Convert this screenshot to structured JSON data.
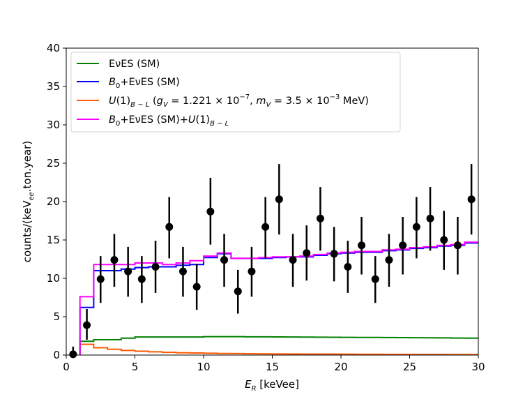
{
  "chart_data": {
    "type": "step-histogram-with-errorbars",
    "title": "",
    "xlabel": "E_R [keVee]",
    "ylabel": "counts/(keV_ee.ton.year)",
    "xlim": [
      0,
      30
    ],
    "ylim": [
      0,
      40
    ],
    "xticks": [
      "0",
      "5",
      "10",
      "15",
      "20",
      "25",
      "30"
    ],
    "yticks": [
      "0",
      "5",
      "10",
      "15",
      "20",
      "25",
      "30",
      "35",
      "40"
    ],
    "legend_position": "upper-left",
    "legend": [
      {
        "label": "EνES (SM)",
        "color": "#008000"
      },
      {
        "label": "B0+EνES (SM)",
        "color": "#0000ff"
      },
      {
        "label": "U(1)B−L (gV = 1.221 × 10^−7, mV = 3.5 × 10^−3 MeV)",
        "color": "#ff5a00"
      },
      {
        "label": "B0+EνES (SM)+U(1)B−L",
        "color": "#ff00ff"
      }
    ],
    "bin_edges": [
      1,
      2,
      3,
      4,
      5,
      6,
      7,
      8,
      9,
      10,
      11,
      12,
      13,
      14,
      15,
      16,
      17,
      18,
      19,
      20,
      21,
      22,
      23,
      24,
      25,
      26,
      27,
      28,
      29,
      30
    ],
    "series": [
      {
        "name": "EνES (SM)",
        "values": [
          1.8,
          2.0,
          2.0,
          2.2,
          2.35,
          2.35,
          2.35,
          2.35,
          2.35,
          2.4,
          2.4,
          2.4,
          2.38,
          2.37,
          2.36,
          2.35,
          2.34,
          2.33,
          2.32,
          2.31,
          2.3,
          2.29,
          2.28,
          2.27,
          2.26,
          2.25,
          2.24,
          2.22,
          2.2
        ]
      },
      {
        "name": "B0+EνES (SM)",
        "values": [
          6.2,
          11.0,
          11.0,
          11.2,
          11.4,
          11.5,
          11.5,
          11.7,
          11.8,
          12.7,
          13.2,
          12.6,
          12.6,
          12.6,
          12.7,
          12.8,
          12.8,
          13.0,
          13.2,
          13.3,
          13.4,
          13.4,
          13.6,
          13.7,
          13.9,
          14.0,
          14.2,
          14.3,
          14.6
        ]
      },
      {
        "name": "U(1)B−L",
        "values": [
          1.4,
          0.95,
          0.75,
          0.6,
          0.5,
          0.42,
          0.35,
          0.3,
          0.27,
          0.24,
          0.21,
          0.19,
          0.17,
          0.16,
          0.15,
          0.14,
          0.13,
          0.12,
          0.12,
          0.11,
          0.1,
          0.1,
          0.09,
          0.09,
          0.08,
          0.08,
          0.08,
          0.07,
          0.07
        ]
      },
      {
        "name": "B0+EνES (SM)+U(1)B−L",
        "values": [
          7.6,
          11.8,
          11.8,
          11.8,
          12.0,
          12.0,
          11.8,
          12.0,
          12.3,
          12.9,
          13.3,
          12.6,
          12.6,
          12.7,
          12.8,
          12.8,
          12.9,
          13.1,
          13.3,
          13.4,
          13.5,
          13.5,
          13.7,
          13.8,
          14.0,
          14.1,
          14.3,
          14.4,
          14.7
        ]
      }
    ],
    "data_points": {
      "x": [
        0.5,
        1.5,
        2.5,
        3.5,
        4.5,
        5.5,
        6.5,
        7.5,
        8.5,
        9.5,
        10.5,
        11.5,
        12.5,
        13.5,
        14.5,
        15.5,
        16.5,
        17.5,
        18.5,
        19.5,
        20.5,
        21.5,
        22.5,
        23.5,
        24.5,
        25.5,
        26.5,
        27.5,
        28.5,
        29.5
      ],
      "y": [
        0.1,
        3.9,
        9.9,
        12.4,
        10.9,
        9.9,
        11.5,
        16.7,
        10.9,
        8.9,
        18.7,
        12.4,
        8.3,
        10.9,
        16.7,
        20.3,
        12.4,
        13.3,
        17.8,
        13.2,
        11.5,
        14.3,
        9.9,
        12.4,
        14.3,
        16.7,
        17.8,
        15.0,
        14.3,
        20.3
      ],
      "err_low": [
        0.1,
        1.9,
        3.1,
        3.5,
        3.3,
        3.1,
        3.4,
        4.1,
        3.3,
        3.0,
        4.3,
        3.5,
        2.9,
        3.3,
        4.1,
        4.6,
        3.5,
        3.6,
        4.2,
        3.6,
        3.4,
        3.8,
        3.1,
        3.5,
        3.8,
        4.1,
        4.2,
        3.9,
        3.8,
        4.6
      ],
      "err_high": [
        1.0,
        2.1,
        3.0,
        3.4,
        3.2,
        3.0,
        3.4,
        3.9,
        3.2,
        3.0,
        4.4,
        3.4,
        2.8,
        3.2,
        3.9,
        4.6,
        3.4,
        3.6,
        4.1,
        3.5,
        3.4,
        3.7,
        3.0,
        3.4,
        3.7,
        3.9,
        4.1,
        3.8,
        3.7,
        4.6
      ]
    }
  }
}
